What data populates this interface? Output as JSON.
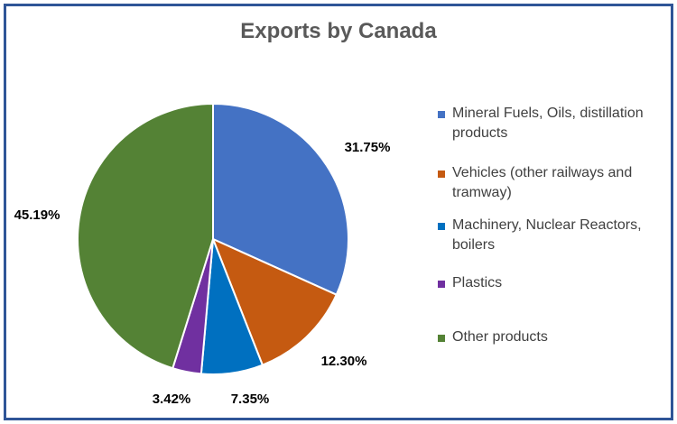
{
  "chart_data": {
    "type": "pie",
    "title": "Exports by Canada",
    "categories": [
      "Mineral Fuels, Oils, distillation products",
      "Vehicles (other railways and tramway)",
      "Machinery, Nuclear Reactors, boilers",
      "Plastics",
      "Other products"
    ],
    "values": [
      31.75,
      12.3,
      7.35,
      3.42,
      45.19
    ],
    "labels": [
      "31.75%",
      "12.30%",
      "7.35%",
      "3.42%",
      "45.19%"
    ],
    "colors": [
      "#4472c4",
      "#c55a11",
      "#0070c0",
      "#7030a0",
      "#548235"
    ],
    "legend_position": "right"
  }
}
